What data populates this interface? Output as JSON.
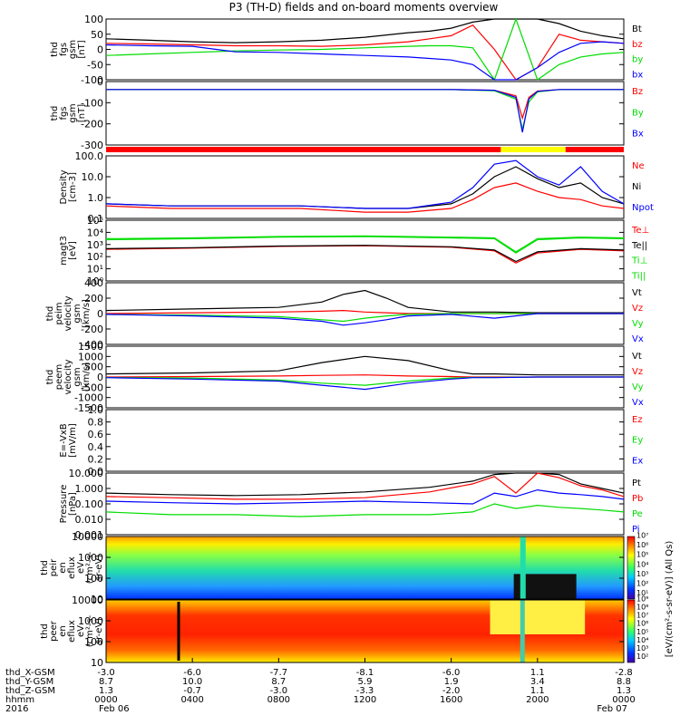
{
  "title": "P3 (TH-D) fields and on-board moments overview",
  "colors": {
    "black": "#000000",
    "red": "#ff0000",
    "green": "#00dd00",
    "blue": "#0000ff",
    "yellow": "#ffff00"
  },
  "panels": [
    {
      "id": "fgs",
      "ylabel": [
        "thd",
        "fgs",
        "gsm",
        "[nT]"
      ],
      "ticks": [
        "100",
        "50",
        "0",
        "-50",
        "-100"
      ],
      "legend": [
        {
          "t": "Bt",
          "c": "black"
        },
        {
          "t": "bz",
          "c": "red"
        },
        {
          "t": "by",
          "c": "green"
        },
        {
          "t": "bx",
          "c": "blue"
        }
      ]
    },
    {
      "id": "fgl",
      "ylabel": [
        "thd",
        "fgs",
        "gsm",
        "[nT]"
      ],
      "ticks": [
        "0",
        "-100",
        "-200",
        "-300"
      ],
      "legend": [
        {
          "t": "Bz",
          "c": "red"
        },
        {
          "t": "By",
          "c": "green"
        },
        {
          "t": "Bx",
          "c": "blue"
        }
      ]
    },
    {
      "id": "density",
      "ylabel": [
        "Density",
        "[cm-3]"
      ],
      "ticks": [
        "100.0",
        "10.0",
        "1.0",
        "0.1"
      ],
      "legend": [
        {
          "t": "Ne",
          "c": "red"
        },
        {
          "t": "Ni",
          "c": "black"
        },
        {
          "t": "Npot",
          "c": "blue"
        }
      ]
    },
    {
      "id": "temp",
      "ylabel": [
        "magt3",
        "[eV]"
      ],
      "ticks": [
        "10⁵",
        "10⁴",
        "10³",
        "10²",
        "10¹",
        "10⁰"
      ],
      "legend": [
        {
          "t": "Te⊥",
          "c": "red"
        },
        {
          "t": "Te||",
          "c": "black"
        },
        {
          "t": "Ti⊥",
          "c": "green"
        },
        {
          "t": "Ti||",
          "c": "green"
        }
      ]
    },
    {
      "id": "vi",
      "ylabel": [
        "thd",
        "peim",
        "velocity",
        "gsm",
        "[km/s]"
      ],
      "ticks": [
        "400",
        "200",
        "0",
        "-200",
        "-400"
      ],
      "legend": [
        {
          "t": "Vt",
          "c": "black"
        },
        {
          "t": "Vz",
          "c": "red"
        },
        {
          "t": "Vy",
          "c": "green"
        },
        {
          "t": "Vx",
          "c": "blue"
        }
      ]
    },
    {
      "id": "ve",
      "ylabel": [
        "thd",
        "peem",
        "velocity",
        "gsm",
        "[km/s]"
      ],
      "ticks": [
        "1500",
        "1000",
        "500",
        "0",
        "-500",
        "-1000",
        "-1500"
      ],
      "legend": [
        {
          "t": "Vt",
          "c": "black"
        },
        {
          "t": "Vz",
          "c": "red"
        },
        {
          "t": "Vy",
          "c": "green"
        },
        {
          "t": "Vx",
          "c": "blue"
        }
      ]
    },
    {
      "id": "efield",
      "ylabel": [
        "E=-VxB",
        "[mV/m]"
      ],
      "ticks": [
        "1.0",
        "0.8",
        "0.6",
        "0.4",
        "0.2",
        "0.0"
      ],
      "legend": [
        {
          "t": "Ez",
          "c": "red"
        },
        {
          "t": "Ey",
          "c": "green"
        },
        {
          "t": "Ex",
          "c": "blue"
        }
      ]
    },
    {
      "id": "pressure",
      "ylabel": [
        "Pressure",
        "[nPa]"
      ],
      "ticks": [
        "10.000",
        "1.000",
        "0.100",
        "0.010",
        "0.001"
      ],
      "legend": [
        {
          "t": "Pt",
          "c": "black"
        },
        {
          "t": "Pb",
          "c": "red"
        },
        {
          "t": "Pe",
          "c": "green"
        },
        {
          "t": "Pi",
          "c": "blue"
        }
      ]
    },
    {
      "id": "ion_spec",
      "ylabel": [
        "thd",
        "peir",
        "en",
        "eflux",
        "eV",
        "(cm²-s-",
        "sr-eV)"
      ],
      "ticks": [
        "10000",
        "1000",
        "100",
        "10"
      ],
      "legend": []
    },
    {
      "id": "ele_spec",
      "ylabel": [
        "thd",
        "peer",
        "en",
        "eflux",
        "eV",
        "(cm²-s-",
        "sr-eV)"
      ],
      "ticks": [
        "10000",
        "1000",
        "100",
        "10"
      ],
      "legend": []
    }
  ],
  "colorbar": {
    "label": "[eV/(cm²-s-sr-eV)] (All Qs)",
    "ion_ticks": [
      "10⁷",
      "10⁶",
      "10⁵",
      "10⁴",
      "10³",
      "10²",
      "10¹"
    ],
    "ele_ticks": [
      "10⁹",
      "10⁸",
      "10⁷",
      "10⁶",
      "10⁵",
      "10⁴",
      "10³",
      "10²"
    ]
  },
  "xaxis": {
    "rows": [
      {
        "label": "thd_X-GSM",
        "values": [
          "-3.0",
          "-6.0",
          "-7.7",
          "-8.1",
          "-6.0",
          "1.1",
          "-2.8"
        ]
      },
      {
        "label": "thd_Y-GSM",
        "values": [
          "8.7",
          "10.0",
          "8.7",
          "5.9",
          "1.9",
          "3.4",
          "8.8"
        ]
      },
      {
        "label": "thd_Z-GSM",
        "values": [
          "1.3",
          "-0.7",
          "-3.0",
          "-3.3",
          "-2.0",
          "1.1",
          "1.3"
        ]
      },
      {
        "label": "hhmm",
        "values": [
          "0000",
          "0400",
          "0800",
          "1200",
          "1600",
          "2000",
          "0000"
        ]
      },
      {
        "label": "2016",
        "values": [
          "Feb 06",
          "",
          "",
          "",
          "",
          "",
          "Feb 07"
        ]
      }
    ]
  },
  "chart_data": {
    "type": "line",
    "title": "P3 (TH-D) fields and on-board moments overview",
    "x_range_hours": [
      0,
      24
    ],
    "x_tick_labels": [
      "0000",
      "0400",
      "0800",
      "1200",
      "1600",
      "2000",
      "0000"
    ],
    "panels": {
      "fgs": {
        "ylim": [
          -100,
          100
        ],
        "x": [
          0,
          2,
          4,
          6,
          8,
          10,
          12,
          14,
          15,
          16,
          17,
          18,
          19,
          20,
          21,
          22,
          23,
          24
        ],
        "series": [
          {
            "name": "Bt",
            "values": [
              35,
              30,
              25,
              22,
              25,
              30,
              40,
              55,
              60,
              70,
              90,
              100,
              100,
              100,
              85,
              60,
              45,
              35
            ]
          },
          {
            "name": "bz",
            "values": [
              20,
              18,
              15,
              12,
              12,
              10,
              15,
              25,
              35,
              45,
              80,
              0,
              -100,
              -60,
              50,
              30,
              25,
              20
            ]
          },
          {
            "name": "by",
            "values": [
              -20,
              -15,
              -10,
              -5,
              -2,
              0,
              5,
              10,
              12,
              12,
              5,
              -100,
              100,
              -100,
              -50,
              -25,
              -15,
              -10
            ]
          },
          {
            "name": "bx",
            "values": [
              15,
              12,
              10,
              -8,
              -10,
              -15,
              -20,
              -25,
              -30,
              -35,
              -50,
              -100,
              -100,
              -60,
              -10,
              20,
              25,
              20
            ]
          }
        ]
      },
      "fgl": {
        "ylim": [
          -350,
          50
        ],
        "x": [
          0,
          4,
          8,
          12,
          16,
          18,
          19,
          19.3,
          19.6,
          20,
          21,
          24
        ],
        "series": [
          {
            "name": "Bz",
            "values": [
              0,
              0,
              0,
              0,
              0,
              -5,
              -40,
              -180,
              -50,
              -10,
              0,
              0
            ]
          },
          {
            "name": "By",
            "values": [
              0,
              0,
              0,
              0,
              0,
              -8,
              -60,
              -250,
              -80,
              -15,
              0,
              0
            ]
          },
          {
            "name": "Bx",
            "values": [
              0,
              0,
              0,
              0,
              0,
              -5,
              -50,
              -270,
              -60,
              -12,
              0,
              0
            ]
          }
        ]
      },
      "density": {
        "ylim_log10": [
          -1,
          2
        ],
        "x": [
          0,
          3,
          6,
          9,
          12,
          14,
          16,
          17,
          18,
          19,
          20,
          21,
          22,
          23,
          24
        ],
        "series": [
          {
            "name": "Ne",
            "values": [
              0.4,
              0.3,
              0.3,
              0.3,
              0.2,
              0.2,
              0.3,
              0.8,
              3,
              5,
              2,
              1,
              0.8,
              0.4,
              0.3
            ]
          },
          {
            "name": "Ni",
            "values": [
              0.5,
              0.4,
              0.4,
              0.4,
              0.3,
              0.3,
              0.5,
              1.5,
              10,
              30,
              8,
              3,
              5,
              1,
              0.5
            ]
          },
          {
            "name": "Npot",
            "values": [
              0.5,
              0.4,
              0.4,
              0.4,
              0.3,
              0.3,
              0.6,
              3,
              40,
              60,
              10,
              4,
              30,
              2,
              0.5
            ]
          }
        ]
      },
      "temp": {
        "ylim_log10": [
          0,
          5
        ],
        "x": [
          0,
          4,
          8,
          12,
          16,
          18,
          19,
          20,
          22,
          24
        ],
        "series": [
          {
            "name": "Te⊥",
            "values": [
              400,
              500,
              700,
              800,
              600,
              300,
              30,
              200,
              400,
              300
            ]
          },
          {
            "name": "Te||",
            "values": [
              450,
              550,
              750,
              850,
              650,
              350,
              40,
              250,
              450,
              350
            ]
          },
          {
            "name": "Ti⊥",
            "values": [
              2500,
              3000,
              4000,
              4500,
              3500,
              3000,
              200,
              2500,
              3500,
              3000
            ]
          },
          {
            "name": "Ti||",
            "values": [
              3000,
              3500,
              4500,
              5000,
              4000,
              3500,
              250,
              3000,
              4000,
              3500
            ]
          }
        ]
      },
      "vi": {
        "ylim": [
          -400,
          400
        ],
        "x": [
          0,
          4,
          8,
          10,
          11,
          12,
          13,
          14,
          16,
          18,
          20,
          24
        ],
        "series": [
          {
            "name": "Vt",
            "values": [
              40,
              60,
              80,
              150,
              250,
              300,
              200,
              80,
              20,
              20,
              10,
              10
            ]
          },
          {
            "name": "Vz",
            "values": [
              0,
              10,
              20,
              30,
              40,
              20,
              10,
              0,
              0,
              0,
              0,
              0
            ]
          },
          {
            "name": "Vy",
            "values": [
              -10,
              -20,
              -40,
              -80,
              -100,
              -60,
              -30,
              -10,
              0,
              0,
              0,
              0
            ]
          },
          {
            "name": "Vx",
            "values": [
              -10,
              -30,
              -60,
              -100,
              -150,
              -120,
              -80,
              -30,
              -10,
              -60,
              0,
              0
            ]
          }
        ]
      },
      "ve": {
        "ylim": [
          -1500,
          1500
        ],
        "x": [
          0,
          4,
          8,
          10,
          12,
          14,
          16,
          17,
          18,
          20,
          22,
          24
        ],
        "series": [
          {
            "name": "Vt",
            "values": [
              150,
              200,
              300,
              700,
              1000,
              800,
              300,
              150,
              150,
              100,
              100,
              100
            ]
          },
          {
            "name": "Vz",
            "values": [
              0,
              20,
              50,
              80,
              100,
              50,
              20,
              0,
              0,
              0,
              0,
              0
            ]
          },
          {
            "name": "Vy",
            "values": [
              -20,
              -50,
              -150,
              -300,
              -400,
              -200,
              -50,
              -20,
              -20,
              0,
              0,
              0
            ]
          },
          {
            "name": "Vx",
            "values": [
              -30,
              -100,
              -200,
              -400,
              -600,
              -300,
              -100,
              -30,
              -30,
              0,
              0,
              0
            ]
          }
        ]
      },
      "efield": {
        "ylim": [
          0,
          1
        ],
        "series": []
      },
      "pressure": {
        "ylim_log10": [
          -3,
          1
        ],
        "x": [
          0,
          3,
          6,
          9,
          12,
          15,
          17,
          18,
          19,
          20,
          21,
          22,
          23,
          24
        ],
        "series": [
          {
            "name": "Pt",
            "values": [
              0.5,
              0.4,
              0.35,
              0.4,
              0.6,
              1.2,
              3,
              8,
              20,
              20,
              8,
              2,
              1,
              0.5
            ]
          },
          {
            "name": "Pb",
            "values": [
              0.3,
              0.25,
              0.2,
              0.2,
              0.25,
              0.6,
              2,
              6,
              0.5,
              10,
              5,
              1.5,
              0.8,
              0.3
            ]
          },
          {
            "name": "Pe",
            "values": [
              0.03,
              0.02,
              0.02,
              0.015,
              0.02,
              0.02,
              0.03,
              0.1,
              0.05,
              0.08,
              0.06,
              0.05,
              0.04,
              0.03
            ]
          },
          {
            "name": "Pi",
            "values": [
              0.15,
              0.12,
              0.1,
              0.12,
              0.15,
              0.12,
              0.1,
              0.5,
              0.3,
              0.8,
              0.5,
              0.4,
              0.3,
              0.2
            ]
          }
        ]
      }
    }
  }
}
